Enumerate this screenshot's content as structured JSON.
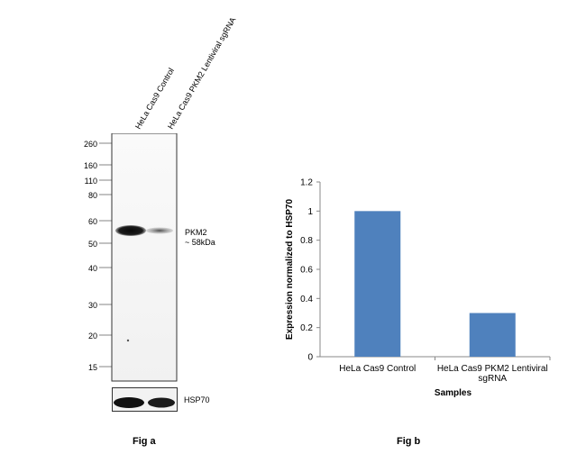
{
  "fig_a": {
    "caption": "Fig a",
    "lanes": [
      "HeLa Cas9 Control",
      "HeLa Cas9 PKM2 Lentiviral sgRNA"
    ],
    "markers": [
      "260",
      "160",
      "110",
      "80",
      "60",
      "50",
      "40",
      "30",
      "20",
      "15"
    ],
    "band_label_1": "PKM2",
    "band_label_2": "~ 58kDa",
    "loading_control": "HSP70"
  },
  "fig_b": {
    "caption": "Fig b"
  },
  "chart_data": {
    "type": "bar",
    "categories": [
      "HeLa Cas9 Control",
      "HeLa Cas9 PKM2 Lentiviral sgRNA"
    ],
    "values": [
      1.0,
      0.3
    ],
    "ylabel": "Expression normalized to HSP70",
    "xlabel": "Samples",
    "ylim": [
      0,
      1.2
    ],
    "yticks": [
      "0",
      "0.2",
      "0.4",
      "0.6",
      "0.8",
      "1",
      "1.2"
    ],
    "bar_color": "#4f81bd",
    "grid": false
  }
}
